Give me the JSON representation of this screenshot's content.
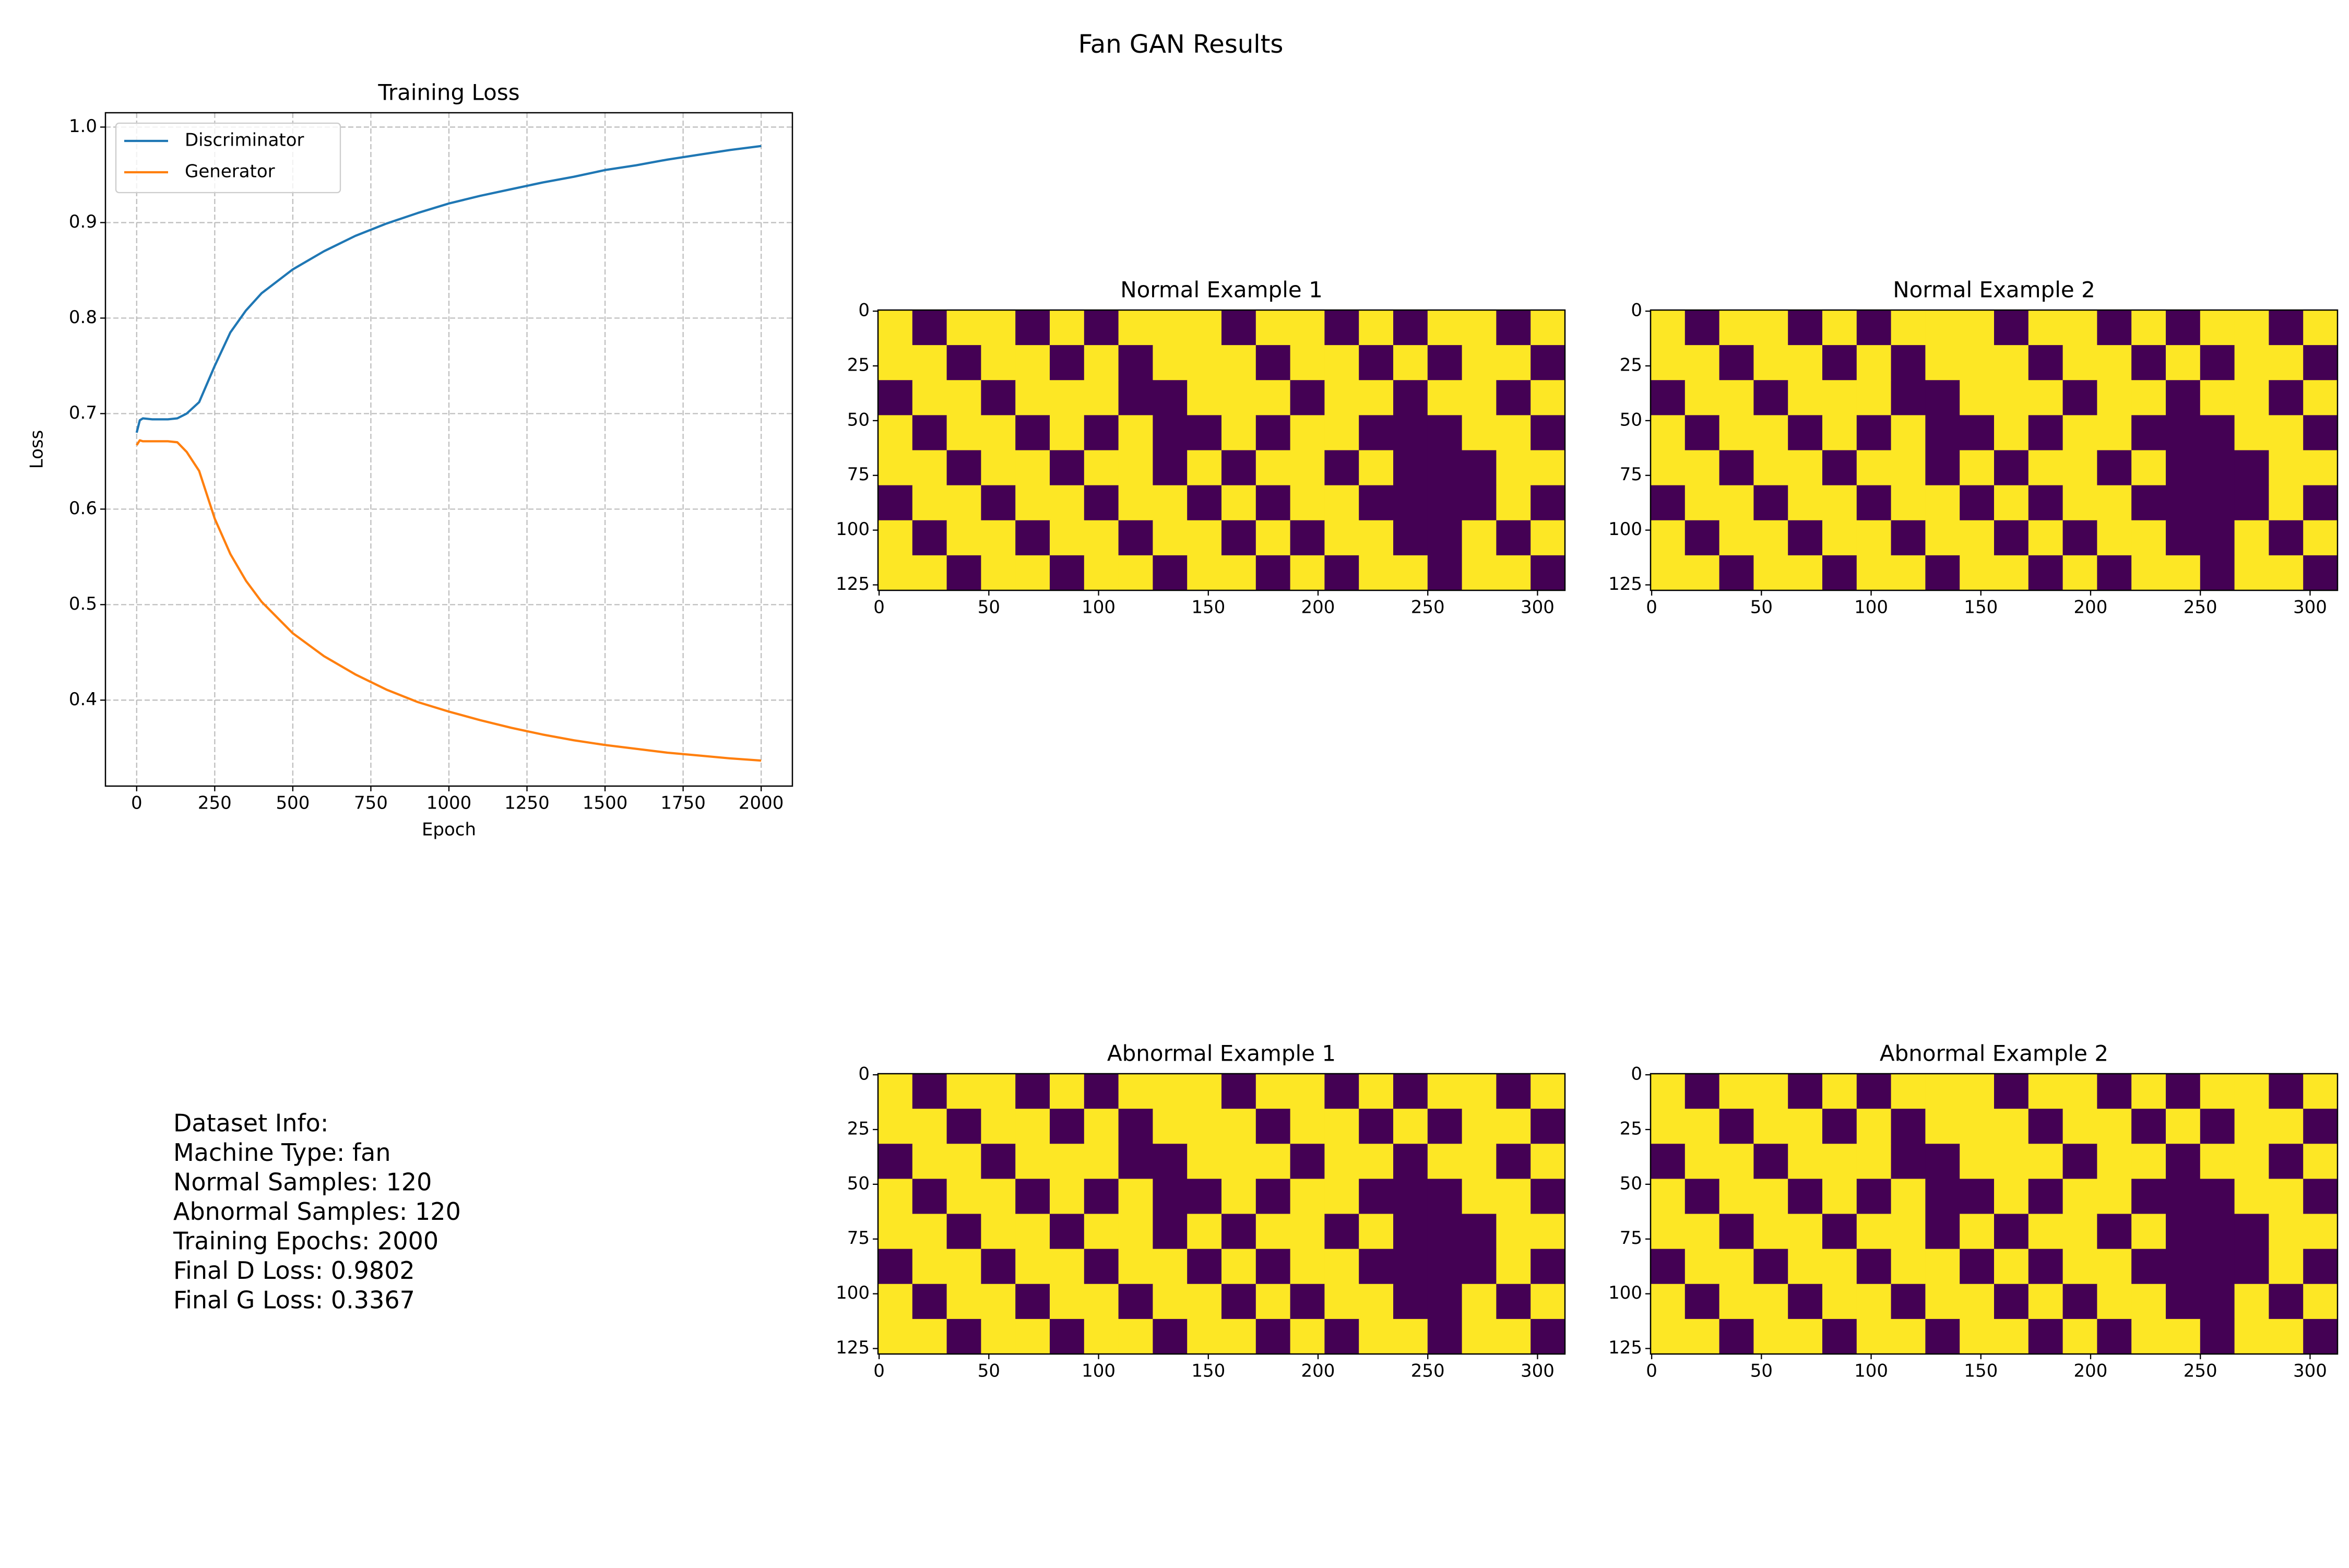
{
  "suptitle": "Fan GAN Results",
  "info_text": [
    "Dataset Info:",
    "Machine Type: fan",
    "Normal Samples: 120",
    "Abnormal Samples: 120",
    "Training Epochs: 2000",
    "Final D Loss: 0.9802",
    "Final G Loss: 0.3367"
  ],
  "chart_data": [
    {
      "type": "line",
      "title": "Training Loss",
      "x_label": "Epoch",
      "y_label": "Loss",
      "x": [
        0,
        10,
        20,
        50,
        100,
        130,
        160,
        200,
        250,
        300,
        350,
        400,
        500,
        600,
        700,
        800,
        900,
        1000,
        1100,
        1200,
        1300,
        1400,
        1500,
        1600,
        1700,
        1800,
        1900,
        2000
      ],
      "series": [
        {
          "name": "Discriminator",
          "color": "#1f77b4",
          "values": [
            0.68,
            0.693,
            0.695,
            0.694,
            0.694,
            0.695,
            0.7,
            0.712,
            0.75,
            0.785,
            0.808,
            0.826,
            0.851,
            0.87,
            0.886,
            0.899,
            0.91,
            0.92,
            0.928,
            0.935,
            0.942,
            0.948,
            0.955,
            0.96,
            0.966,
            0.971,
            0.976,
            0.9802
          ]
        },
        {
          "name": "Generator",
          "color": "#ff7f0e",
          "values": [
            0.667,
            0.672,
            0.671,
            0.671,
            0.671,
            0.67,
            0.66,
            0.64,
            0.59,
            0.553,
            0.525,
            0.503,
            0.47,
            0.446,
            0.427,
            0.411,
            0.398,
            0.388,
            0.379,
            0.371,
            0.364,
            0.358,
            0.353,
            0.349,
            0.345,
            0.342,
            0.339,
            0.3367
          ]
        }
      ],
      "xlim": [
        -100,
        2100
      ],
      "xticks": [
        0,
        250,
        500,
        750,
        1000,
        1250,
        1500,
        1750,
        2000
      ],
      "ylim": [
        0.31,
        1.015
      ],
      "yticks": [
        0.4,
        0.5,
        0.6,
        0.7,
        0.8,
        0.9,
        {
          "value": 1,
          "label": "1.0"
        }
      ],
      "grid": true,
      "legend": "upper left"
    },
    {
      "type": "heatmap",
      "title": "Normal Example 1",
      "colors": [
        "#440154",
        "#fde725"
      ],
      "xlim": [
        -0.5,
        312.5
      ],
      "xticks": [
        0,
        50,
        100,
        150,
        200,
        250,
        300
      ],
      "ylim": [
        127.5,
        -0.5
      ],
      "yticks": [
        0,
        25,
        50,
        75,
        100,
        125
      ],
      "z": [
        [
          1,
          0,
          1,
          1,
          0,
          1,
          0,
          1,
          1,
          1,
          0,
          1,
          1,
          0,
          1,
          0,
          1,
          1,
          0,
          1
        ],
        [
          1,
          1,
          0,
          1,
          1,
          0,
          1,
          0,
          1,
          1,
          1,
          0,
          1,
          1,
          0,
          1,
          0,
          1,
          1,
          0
        ],
        [
          0,
          1,
          1,
          0,
          1,
          1,
          1,
          0,
          0,
          1,
          1,
          1,
          0,
          1,
          1,
          0,
          1,
          1,
          0,
          1
        ],
        [
          1,
          0,
          1,
          1,
          0,
          1,
          0,
          1,
          0,
          0,
          1,
          0,
          1,
          1,
          0,
          0,
          0,
          1,
          1,
          0
        ],
        [
          1,
          1,
          0,
          1,
          1,
          0,
          1,
          1,
          0,
          1,
          0,
          1,
          1,
          0,
          1,
          0,
          0,
          0,
          1,
          1
        ],
        [
          0,
          1,
          1,
          0,
          1,
          1,
          0,
          1,
          1,
          0,
          1,
          0,
          1,
          1,
          0,
          0,
          0,
          0,
          1,
          0
        ],
        [
          1,
          0,
          1,
          1,
          0,
          1,
          1,
          0,
          1,
          1,
          0,
          1,
          0,
          1,
          1,
          0,
          0,
          1,
          0,
          1
        ],
        [
          1,
          1,
          0,
          1,
          1,
          0,
          1,
          1,
          0,
          1,
          1,
          0,
          1,
          0,
          1,
          1,
          0,
          1,
          1,
          0
        ]
      ]
    },
    {
      "type": "heatmap",
      "title": "Normal Example 2",
      "colors": [
        "#440154",
        "#fde725"
      ],
      "xlim": [
        -0.5,
        312.5
      ],
      "xticks": [
        0,
        50,
        100,
        150,
        200,
        250,
        300
      ],
      "ylim": [
        127.5,
        -0.5
      ],
      "yticks": [
        0,
        25,
        50,
        75,
        100,
        125
      ],
      "z": [
        [
          1,
          0,
          1,
          1,
          0,
          1,
          0,
          1,
          1,
          1,
          0,
          1,
          1,
          0,
          1,
          0,
          1,
          1,
          0,
          1
        ],
        [
          1,
          1,
          0,
          1,
          1,
          0,
          1,
          0,
          1,
          1,
          1,
          0,
          1,
          1,
          0,
          1,
          0,
          1,
          1,
          0
        ],
        [
          0,
          1,
          1,
          0,
          1,
          1,
          1,
          0,
          0,
          1,
          1,
          1,
          0,
          1,
          1,
          0,
          1,
          1,
          0,
          1
        ],
        [
          1,
          0,
          1,
          1,
          0,
          1,
          0,
          1,
          0,
          0,
          1,
          0,
          1,
          1,
          0,
          0,
          0,
          1,
          1,
          0
        ],
        [
          1,
          1,
          0,
          1,
          1,
          0,
          1,
          1,
          0,
          1,
          0,
          1,
          1,
          0,
          1,
          0,
          0,
          0,
          1,
          1
        ],
        [
          0,
          1,
          1,
          0,
          1,
          1,
          0,
          1,
          1,
          0,
          1,
          0,
          1,
          1,
          0,
          0,
          0,
          0,
          1,
          0
        ],
        [
          1,
          0,
          1,
          1,
          0,
          1,
          1,
          0,
          1,
          1,
          0,
          1,
          0,
          1,
          1,
          0,
          0,
          1,
          0,
          1
        ],
        [
          1,
          1,
          0,
          1,
          1,
          0,
          1,
          1,
          0,
          1,
          1,
          0,
          1,
          0,
          1,
          1,
          0,
          1,
          1,
          0
        ]
      ]
    },
    {
      "type": "heatmap",
      "title": "Abnormal Example 1",
      "colors": [
        "#440154",
        "#fde725"
      ],
      "xlim": [
        -0.5,
        312.5
      ],
      "xticks": [
        0,
        50,
        100,
        150,
        200,
        250,
        300
      ],
      "ylim": [
        127.5,
        -0.5
      ],
      "yticks": [
        0,
        25,
        50,
        75,
        100,
        125
      ],
      "z": [
        [
          1,
          0,
          1,
          1,
          0,
          1,
          0,
          1,
          1,
          1,
          0,
          1,
          1,
          0,
          1,
          0,
          1,
          1,
          0,
          1
        ],
        [
          1,
          1,
          0,
          1,
          1,
          0,
          1,
          0,
          1,
          1,
          1,
          0,
          1,
          1,
          0,
          1,
          0,
          1,
          1,
          0
        ],
        [
          0,
          1,
          1,
          0,
          1,
          1,
          1,
          0,
          0,
          1,
          1,
          1,
          0,
          1,
          1,
          0,
          1,
          1,
          0,
          1
        ],
        [
          1,
          0,
          1,
          1,
          0,
          1,
          0,
          1,
          0,
          0,
          1,
          0,
          1,
          1,
          0,
          0,
          0,
          1,
          1,
          0
        ],
        [
          1,
          1,
          0,
          1,
          1,
          0,
          1,
          1,
          0,
          1,
          0,
          1,
          1,
          0,
          1,
          0,
          0,
          0,
          1,
          1
        ],
        [
          0,
          1,
          1,
          0,
          1,
          1,
          0,
          1,
          1,
          0,
          1,
          0,
          1,
          1,
          0,
          0,
          0,
          0,
          1,
          0
        ],
        [
          1,
          0,
          1,
          1,
          0,
          1,
          1,
          0,
          1,
          1,
          0,
          1,
          0,
          1,
          1,
          0,
          0,
          1,
          0,
          1
        ],
        [
          1,
          1,
          0,
          1,
          1,
          0,
          1,
          1,
          0,
          1,
          1,
          0,
          1,
          0,
          1,
          1,
          0,
          1,
          1,
          0
        ]
      ]
    },
    {
      "type": "heatmap",
      "title": "Abnormal Example 2",
      "colors": [
        "#440154",
        "#fde725"
      ],
      "xlim": [
        -0.5,
        312.5
      ],
      "xticks": [
        0,
        50,
        100,
        150,
        200,
        250,
        300
      ],
      "ylim": [
        127.5,
        -0.5
      ],
      "yticks": [
        0,
        25,
        50,
        75,
        100,
        125
      ],
      "z": [
        [
          1,
          0,
          1,
          1,
          0,
          1,
          0,
          1,
          1,
          1,
          0,
          1,
          1,
          0,
          1,
          0,
          1,
          1,
          0,
          1
        ],
        [
          1,
          1,
          0,
          1,
          1,
          0,
          1,
          0,
          1,
          1,
          1,
          0,
          1,
          1,
          0,
          1,
          0,
          1,
          1,
          0
        ],
        [
          0,
          1,
          1,
          0,
          1,
          1,
          1,
          0,
          0,
          1,
          1,
          1,
          0,
          1,
          1,
          0,
          1,
          1,
          0,
          1
        ],
        [
          1,
          0,
          1,
          1,
          0,
          1,
          0,
          1,
          0,
          0,
          1,
          0,
          1,
          1,
          0,
          0,
          0,
          1,
          1,
          0
        ],
        [
          1,
          1,
          0,
          1,
          1,
          0,
          1,
          1,
          0,
          1,
          0,
          1,
          1,
          0,
          1,
          0,
          0,
          0,
          1,
          1
        ],
        [
          0,
          1,
          1,
          0,
          1,
          1,
          0,
          1,
          1,
          0,
          1,
          0,
          1,
          1,
          0,
          0,
          0,
          0,
          1,
          0
        ],
        [
          1,
          0,
          1,
          1,
          0,
          1,
          1,
          0,
          1,
          1,
          0,
          1,
          0,
          1,
          1,
          0,
          0,
          1,
          0,
          1
        ],
        [
          1,
          1,
          0,
          1,
          1,
          0,
          1,
          1,
          0,
          1,
          1,
          0,
          1,
          0,
          1,
          1,
          0,
          1,
          1,
          0
        ]
      ]
    }
  ]
}
